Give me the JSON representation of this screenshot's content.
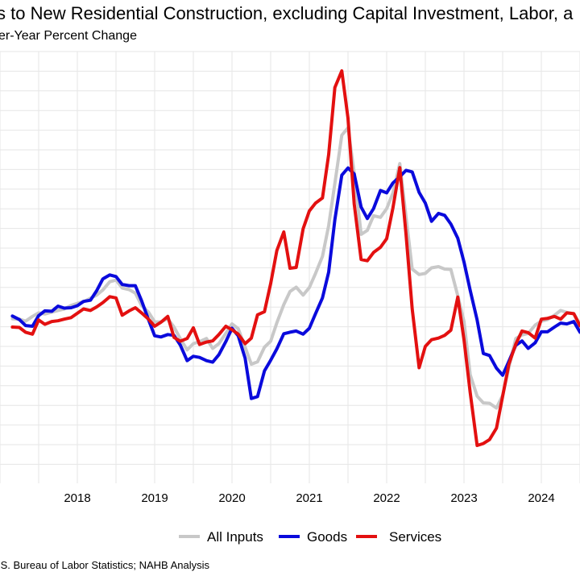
{
  "title": "s to New Residential Construction, excluding Capital Investment, Labor, a",
  "subtitle": "er-Year Percent Change",
  "caption": ".S. Bureau of Labor Statistics; NAHB Analysis",
  "colors": {
    "all_inputs": "#c8c8c8",
    "goods": "#0a0adc",
    "services": "#e31010",
    "grid": "#e6e6e6"
  },
  "chart_data": {
    "type": "line",
    "xlabel": "",
    "ylabel": "",
    "x_ticks": [
      2018,
      2019,
      2020,
      2021,
      2022,
      2023,
      2024
    ],
    "xlim": [
      2017.16,
      2024.5
    ],
    "ylim": [
      0,
      1
    ],
    "y_units": "relative level (0 = bottom of plot, 1 = top); y-axis tick labels are cropped out of view",
    "grid": true,
    "legend_position": "bottom",
    "series": [
      {
        "name": "All Inputs",
        "color": "#c8c8c8",
        "points": [
          [
            2017.16,
            0.372
          ],
          [
            2017.25,
            0.371
          ],
          [
            2017.33,
            0.366
          ],
          [
            2017.42,
            0.378
          ],
          [
            2017.5,
            0.387
          ],
          [
            2017.58,
            0.384
          ],
          [
            2017.67,
            0.389
          ],
          [
            2017.75,
            0.393
          ],
          [
            2017.83,
            0.397
          ],
          [
            2017.92,
            0.406
          ],
          [
            2018.0,
            0.411
          ],
          [
            2018.08,
            0.415
          ],
          [
            2018.17,
            0.424
          ],
          [
            2018.25,
            0.432
          ],
          [
            2018.33,
            0.445
          ],
          [
            2018.42,
            0.466
          ],
          [
            2018.5,
            0.47
          ],
          [
            2018.58,
            0.45
          ],
          [
            2018.67,
            0.446
          ],
          [
            2018.75,
            0.437
          ],
          [
            2018.83,
            0.406
          ],
          [
            2018.92,
            0.389
          ],
          [
            2019.0,
            0.364
          ],
          [
            2019.08,
            0.364
          ],
          [
            2019.17,
            0.372
          ],
          [
            2019.25,
            0.351
          ],
          [
            2019.33,
            0.322
          ],
          [
            2019.42,
            0.293
          ],
          [
            2019.5,
            0.309
          ],
          [
            2019.58,
            0.314
          ],
          [
            2019.67,
            0.322
          ],
          [
            2019.75,
            0.297
          ],
          [
            2019.83,
            0.309
          ],
          [
            2019.92,
            0.335
          ],
          [
            2020.0,
            0.359
          ],
          [
            2020.08,
            0.347
          ],
          [
            2020.17,
            0.3
          ],
          [
            2020.25,
            0.257
          ],
          [
            2020.33,
            0.263
          ],
          [
            2020.42,
            0.3
          ],
          [
            2020.5,
            0.315
          ],
          [
            2020.58,
            0.362
          ],
          [
            2020.67,
            0.408
          ],
          [
            2020.75,
            0.441
          ],
          [
            2020.83,
            0.452
          ],
          [
            2020.92,
            0.432
          ],
          [
            2021.0,
            0.451
          ],
          [
            2021.08,
            0.487
          ],
          [
            2021.17,
            0.53
          ],
          [
            2021.25,
            0.608
          ],
          [
            2021.33,
            0.715
          ],
          [
            2021.42,
            0.837
          ],
          [
            2021.5,
            0.856
          ],
          [
            2021.58,
            0.741
          ],
          [
            2021.67,
            0.586
          ],
          [
            2021.75,
            0.596
          ],
          [
            2021.83,
            0.633
          ],
          [
            2021.92,
            0.629
          ],
          [
            2022.0,
            0.651
          ],
          [
            2022.08,
            0.69
          ],
          [
            2022.17,
            0.765
          ],
          [
            2022.25,
            0.631
          ],
          [
            2022.33,
            0.498
          ],
          [
            2022.42,
            0.484
          ],
          [
            2022.5,
            0.487
          ],
          [
            2022.58,
            0.501
          ],
          [
            2022.67,
            0.504
          ],
          [
            2022.75,
            0.498
          ],
          [
            2022.83,
            0.497
          ],
          [
            2022.92,
            0.43
          ],
          [
            2023.0,
            0.365
          ],
          [
            2023.08,
            0.23
          ],
          [
            2023.17,
            0.176
          ],
          [
            2023.25,
            0.159
          ],
          [
            2023.33,
            0.158
          ],
          [
            2023.42,
            0.146
          ],
          [
            2023.5,
            0.178
          ],
          [
            2023.58,
            0.249
          ],
          [
            2023.67,
            0.322
          ],
          [
            2023.75,
            0.331
          ],
          [
            2023.83,
            0.335
          ],
          [
            2023.92,
            0.356
          ],
          [
            2024.0,
            0.366
          ],
          [
            2024.08,
            0.37
          ],
          [
            2024.17,
            0.381
          ],
          [
            2024.25,
            0.393
          ],
          [
            2024.33,
            0.388
          ],
          [
            2024.42,
            0.385
          ],
          [
            2024.5,
            0.358
          ]
        ]
      },
      {
        "name": "Goods",
        "color": "#0a0adc",
        "points": [
          [
            2017.16,
            0.379
          ],
          [
            2017.25,
            0.37
          ],
          [
            2017.33,
            0.355
          ],
          [
            2017.42,
            0.353
          ],
          [
            2017.5,
            0.38
          ],
          [
            2017.58,
            0.392
          ],
          [
            2017.67,
            0.391
          ],
          [
            2017.75,
            0.404
          ],
          [
            2017.83,
            0.399
          ],
          [
            2017.92,
            0.4
          ],
          [
            2018.0,
            0.405
          ],
          [
            2018.08,
            0.416
          ],
          [
            2018.17,
            0.419
          ],
          [
            2018.25,
            0.443
          ],
          [
            2018.33,
            0.473
          ],
          [
            2018.42,
            0.483
          ],
          [
            2018.5,
            0.479
          ],
          [
            2018.58,
            0.459
          ],
          [
            2018.67,
            0.456
          ],
          [
            2018.75,
            0.456
          ],
          [
            2018.83,
            0.418
          ],
          [
            2018.92,
            0.37
          ],
          [
            2019.0,
            0.329
          ],
          [
            2019.08,
            0.326
          ],
          [
            2019.17,
            0.332
          ],
          [
            2019.25,
            0.33
          ],
          [
            2019.33,
            0.306
          ],
          [
            2019.42,
            0.266
          ],
          [
            2019.5,
            0.277
          ],
          [
            2019.58,
            0.274
          ],
          [
            2019.67,
            0.266
          ],
          [
            2019.75,
            0.262
          ],
          [
            2019.83,
            0.281
          ],
          [
            2019.92,
            0.314
          ],
          [
            2020.0,
            0.348
          ],
          [
            2020.08,
            0.329
          ],
          [
            2020.17,
            0.272
          ],
          [
            2020.25,
            0.17
          ],
          [
            2020.33,
            0.175
          ],
          [
            2020.42,
            0.24
          ],
          [
            2020.5,
            0.267
          ],
          [
            2020.58,
            0.296
          ],
          [
            2020.67,
            0.334
          ],
          [
            2020.75,
            0.338
          ],
          [
            2020.83,
            0.341
          ],
          [
            2020.92,
            0.333
          ],
          [
            2021.0,
            0.348
          ],
          [
            2021.08,
            0.385
          ],
          [
            2021.17,
            0.425
          ],
          [
            2021.25,
            0.49
          ],
          [
            2021.33,
            0.623
          ],
          [
            2021.42,
            0.736
          ],
          [
            2021.5,
            0.754
          ],
          [
            2021.58,
            0.739
          ],
          [
            2021.67,
            0.655
          ],
          [
            2021.75,
            0.626
          ],
          [
            2021.83,
            0.651
          ],
          [
            2021.92,
            0.697
          ],
          [
            2022.0,
            0.691
          ],
          [
            2022.08,
            0.716
          ],
          [
            2022.17,
            0.732
          ],
          [
            2022.25,
            0.748
          ],
          [
            2022.33,
            0.744
          ],
          [
            2022.42,
            0.692
          ],
          [
            2022.5,
            0.665
          ],
          [
            2022.58,
            0.619
          ],
          [
            2022.67,
            0.639
          ],
          [
            2022.75,
            0.634
          ],
          [
            2022.83,
            0.612
          ],
          [
            2022.92,
            0.576
          ],
          [
            2023.0,
            0.516
          ],
          [
            2023.08,
            0.444
          ],
          [
            2023.17,
            0.369
          ],
          [
            2023.25,
            0.284
          ],
          [
            2023.33,
            0.279
          ],
          [
            2023.42,
            0.247
          ],
          [
            2023.5,
            0.229
          ],
          [
            2023.58,
            0.264
          ],
          [
            2023.67,
            0.305
          ],
          [
            2023.75,
            0.316
          ],
          [
            2023.83,
            0.297
          ],
          [
            2023.92,
            0.311
          ],
          [
            2024.0,
            0.339
          ],
          [
            2024.08,
            0.339
          ],
          [
            2024.17,
            0.351
          ],
          [
            2024.25,
            0.361
          ],
          [
            2024.33,
            0.359
          ],
          [
            2024.42,
            0.365
          ],
          [
            2024.5,
            0.338
          ]
        ]
      },
      {
        "name": "Services",
        "color": "#e31010",
        "points": [
          [
            2017.16,
            0.351
          ],
          [
            2017.25,
            0.35
          ],
          [
            2017.33,
            0.338
          ],
          [
            2017.42,
            0.333
          ],
          [
            2017.5,
            0.369
          ],
          [
            2017.58,
            0.358
          ],
          [
            2017.67,
            0.365
          ],
          [
            2017.75,
            0.367
          ],
          [
            2017.83,
            0.371
          ],
          [
            2017.92,
            0.375
          ],
          [
            2018.0,
            0.386
          ],
          [
            2018.08,
            0.397
          ],
          [
            2018.17,
            0.393
          ],
          [
            2018.25,
            0.402
          ],
          [
            2018.33,
            0.413
          ],
          [
            2018.42,
            0.428
          ],
          [
            2018.5,
            0.425
          ],
          [
            2018.58,
            0.381
          ],
          [
            2018.67,
            0.392
          ],
          [
            2018.75,
            0.4
          ],
          [
            2018.83,
            0.387
          ],
          [
            2018.92,
            0.371
          ],
          [
            2019.0,
            0.353
          ],
          [
            2019.08,
            0.363
          ],
          [
            2019.17,
            0.378
          ],
          [
            2019.25,
            0.325
          ],
          [
            2019.33,
            0.315
          ],
          [
            2019.42,
            0.322
          ],
          [
            2019.5,
            0.349
          ],
          [
            2019.58,
            0.307
          ],
          [
            2019.67,
            0.313
          ],
          [
            2019.75,
            0.316
          ],
          [
            2019.83,
            0.332
          ],
          [
            2019.92,
            0.353
          ],
          [
            2020.0,
            0.344
          ],
          [
            2020.08,
            0.333
          ],
          [
            2020.17,
            0.309
          ],
          [
            2020.25,
            0.323
          ],
          [
            2020.33,
            0.382
          ],
          [
            2020.42,
            0.39
          ],
          [
            2020.5,
            0.461
          ],
          [
            2020.58,
            0.545
          ],
          [
            2020.67,
            0.592
          ],
          [
            2020.75,
            0.5
          ],
          [
            2020.83,
            0.502
          ],
          [
            2020.92,
            0.6
          ],
          [
            2021.0,
            0.645
          ],
          [
            2021.08,
            0.665
          ],
          [
            2021.17,
            0.678
          ],
          [
            2021.25,
            0.788
          ],
          [
            2021.33,
            0.958
          ],
          [
            2021.42,
            1.0
          ],
          [
            2021.5,
            0.88
          ],
          [
            2021.58,
            0.663
          ],
          [
            2021.67,
            0.522
          ],
          [
            2021.75,
            0.519
          ],
          [
            2021.83,
            0.54
          ],
          [
            2021.92,
            0.553
          ],
          [
            2022.0,
            0.575
          ],
          [
            2022.08,
            0.652
          ],
          [
            2022.17,
            0.755
          ],
          [
            2022.25,
            0.587
          ],
          [
            2022.33,
            0.397
          ],
          [
            2022.42,
            0.248
          ],
          [
            2022.5,
            0.302
          ],
          [
            2022.58,
            0.319
          ],
          [
            2022.67,
            0.323
          ],
          [
            2022.75,
            0.33
          ],
          [
            2022.83,
            0.343
          ],
          [
            2022.92,
            0.427
          ],
          [
            2023.0,
            0.319
          ],
          [
            2023.08,
            0.185
          ],
          [
            2023.17,
            0.051
          ],
          [
            2023.25,
            0.056
          ],
          [
            2023.33,
            0.066
          ],
          [
            2023.42,
            0.095
          ],
          [
            2023.5,
            0.176
          ],
          [
            2023.58,
            0.257
          ],
          [
            2023.67,
            0.308
          ],
          [
            2023.75,
            0.341
          ],
          [
            2023.83,
            0.337
          ],
          [
            2023.92,
            0.323
          ],
          [
            2024.0,
            0.371
          ],
          [
            2024.08,
            0.373
          ],
          [
            2024.17,
            0.378
          ],
          [
            2024.25,
            0.371
          ],
          [
            2024.33,
            0.387
          ],
          [
            2024.42,
            0.385
          ],
          [
            2024.5,
            0.354
          ]
        ]
      }
    ]
  }
}
